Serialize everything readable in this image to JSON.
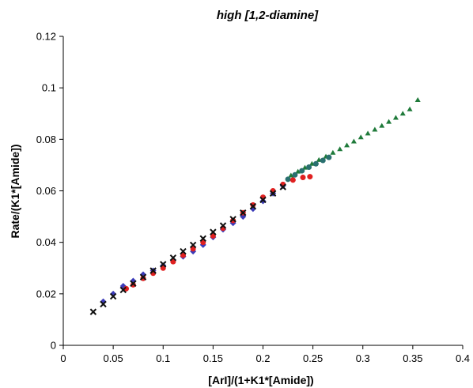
{
  "chart_data": {
    "type": "scatter",
    "title": "high [1,2-diamine]",
    "xlabel": "[ArI]/(1+K1*[Amide])",
    "ylabel": "Rate/(K1*[Amide])",
    "xlim": [
      0,
      0.4
    ],
    "ylim": [
      0,
      0.12
    ],
    "x_ticks": [
      "0",
      "0.05",
      "0.1",
      "0.15",
      "0.2",
      "0.25",
      "0.3",
      "0.35",
      "0.4"
    ],
    "y_ticks": [
      "0",
      "0.02",
      "0.04",
      "0.06",
      "0.08",
      "0.1",
      "0.12"
    ],
    "grid": false,
    "legend": "none",
    "series": [
      {
        "color": "#1f7a3a",
        "marker": "triangle",
        "points": [
          [
            0.228,
            0.066
          ],
          [
            0.235,
            0.0675
          ],
          [
            0.242,
            0.069
          ],
          [
            0.249,
            0.0705
          ],
          [
            0.256,
            0.072
          ],
          [
            0.263,
            0.0733
          ],
          [
            0.27,
            0.0748
          ],
          [
            0.277,
            0.0762
          ],
          [
            0.284,
            0.0777
          ],
          [
            0.291,
            0.0792
          ],
          [
            0.298,
            0.0808
          ],
          [
            0.305,
            0.0823
          ],
          [
            0.312,
            0.0838
          ],
          [
            0.319,
            0.0853
          ],
          [
            0.326,
            0.0868
          ],
          [
            0.333,
            0.0884
          ],
          [
            0.34,
            0.09
          ],
          [
            0.347,
            0.0917
          ],
          [
            0.355,
            0.0953
          ]
        ]
      },
      {
        "color": "#2a7070",
        "marker": "circle",
        "points": [
          [
            0.225,
            0.0645
          ],
          [
            0.232,
            0.0662
          ],
          [
            0.239,
            0.0678
          ],
          [
            0.246,
            0.0692
          ],
          [
            0.253,
            0.0705
          ],
          [
            0.26,
            0.0718
          ],
          [
            0.266,
            0.073
          ]
        ]
      },
      {
        "color": "#3b3bb8",
        "marker": "diamond",
        "points": [
          [
            0.04,
            0.017
          ],
          [
            0.05,
            0.02
          ],
          [
            0.06,
            0.023
          ],
          [
            0.07,
            0.025
          ],
          [
            0.08,
            0.0275
          ],
          [
            0.09,
            0.029
          ],
          [
            0.1,
            0.031
          ],
          [
            0.11,
            0.033
          ],
          [
            0.12,
            0.0345
          ],
          [
            0.13,
            0.0365
          ],
          [
            0.14,
            0.039
          ],
          [
            0.15,
            0.042
          ],
          [
            0.16,
            0.045
          ],
          [
            0.17,
            0.0475
          ],
          [
            0.18,
            0.05
          ],
          [
            0.19,
            0.053
          ],
          [
            0.2,
            0.056
          ],
          [
            0.21,
            0.059
          ],
          [
            0.22,
            0.062
          ]
        ]
      },
      {
        "color": "#e02020",
        "marker": "circle",
        "points": [
          [
            0.063,
            0.022
          ],
          [
            0.07,
            0.0235
          ],
          [
            0.08,
            0.026
          ],
          [
            0.09,
            0.028
          ],
          [
            0.1,
            0.03
          ],
          [
            0.11,
            0.0325
          ],
          [
            0.12,
            0.035
          ],
          [
            0.13,
            0.0375
          ],
          [
            0.14,
            0.04
          ],
          [
            0.15,
            0.0425
          ],
          [
            0.16,
            0.0455
          ],
          [
            0.17,
            0.0485
          ],
          [
            0.18,
            0.0515
          ],
          [
            0.19,
            0.0545
          ],
          [
            0.2,
            0.0575
          ],
          [
            0.21,
            0.06
          ],
          [
            0.22,
            0.0625
          ],
          [
            0.23,
            0.0642
          ],
          [
            0.24,
            0.0652
          ],
          [
            0.247,
            0.0655
          ]
        ]
      },
      {
        "color": "#111111",
        "marker": "cross",
        "points": [
          [
            0.03,
            0.013
          ],
          [
            0.04,
            0.016
          ],
          [
            0.05,
            0.019
          ],
          [
            0.06,
            0.0215
          ],
          [
            0.07,
            0.024
          ],
          [
            0.08,
            0.0265
          ],
          [
            0.09,
            0.029
          ],
          [
            0.1,
            0.0315
          ],
          [
            0.11,
            0.034
          ],
          [
            0.12,
            0.0365
          ],
          [
            0.13,
            0.039
          ],
          [
            0.14,
            0.0415
          ],
          [
            0.15,
            0.044
          ],
          [
            0.16,
            0.0465
          ],
          [
            0.17,
            0.049
          ],
          [
            0.18,
            0.0515
          ],
          [
            0.19,
            0.054
          ],
          [
            0.2,
            0.0565
          ],
          [
            0.21,
            0.059
          ],
          [
            0.22,
            0.0615
          ]
        ]
      }
    ]
  }
}
